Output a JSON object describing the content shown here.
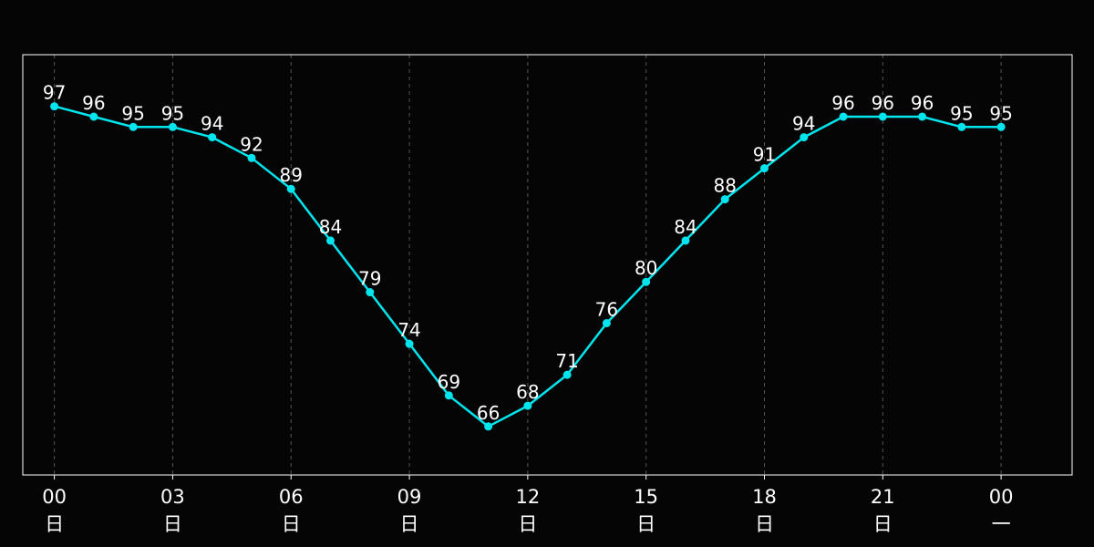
{
  "chart_data": {
    "type": "line",
    "title": "",
    "xlabel": "",
    "ylabel": "",
    "x": [
      0,
      1,
      2,
      3,
      4,
      5,
      6,
      7,
      8,
      9,
      10,
      11,
      12,
      13,
      14,
      15,
      16,
      17,
      18,
      19,
      20,
      21,
      22,
      23,
      24
    ],
    "series": [
      {
        "values": [
          97,
          96,
          95,
          95,
          94,
          92,
          89,
          84,
          79,
          74,
          69,
          66,
          68,
          71,
          76,
          80,
          84,
          88,
          91,
          94,
          96,
          96,
          96,
          95,
          95
        ],
        "color": "#00e5ee"
      }
    ],
    "x_ticks": [
      {
        "x": 0,
        "label": "00",
        "sub": "日"
      },
      {
        "x": 3,
        "label": "03",
        "sub": "日"
      },
      {
        "x": 6,
        "label": "06",
        "sub": "日"
      },
      {
        "x": 9,
        "label": "09",
        "sub": "日"
      },
      {
        "x": 12,
        "label": "12",
        "sub": "日"
      },
      {
        "x": 15,
        "label": "15",
        "sub": "日"
      },
      {
        "x": 18,
        "label": "18",
        "sub": "日"
      },
      {
        "x": 21,
        "label": "21",
        "sub": "日"
      },
      {
        "x": 24,
        "label": "00",
        "sub": "一"
      }
    ],
    "xlim": [
      -0.8,
      25.8
    ],
    "ylim": [
      61.3,
      102
    ],
    "grid": "vertical-dashed",
    "legend": "none",
    "data_labels": true
  }
}
